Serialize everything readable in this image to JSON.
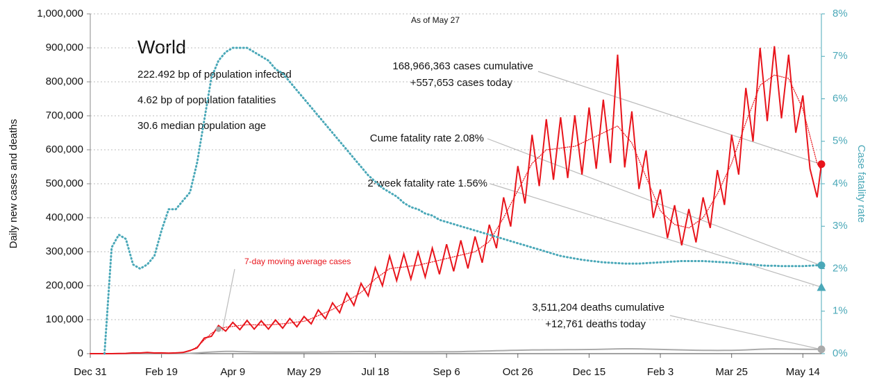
{
  "chart_data": {
    "type": "line",
    "subtitle": "As of May 27",
    "title": "World",
    "info": [
      "222.492 bp of population infected",
      "4.62 bp of population fatalities",
      "30.6 median population age"
    ],
    "ylabel": "Daily new cases and deaths",
    "y2label": "Case fatality rate",
    "xlim": [
      0,
      513
    ],
    "xticks": [
      {
        "value": 0,
        "label": "Dec 31"
      },
      {
        "value": 50,
        "label": "Feb 19"
      },
      {
        "value": 100,
        "label": "Apr 9"
      },
      {
        "value": 150,
        "label": "May 29"
      },
      {
        "value": 200,
        "label": "Jul 18"
      },
      {
        "value": 250,
        "label": "Sep 6"
      },
      {
        "value": 300,
        "label": "Oct 26"
      },
      {
        "value": 350,
        "label": "Dec 15"
      },
      {
        "value": 400,
        "label": "Feb 3"
      },
      {
        "value": 450,
        "label": "Mar 25"
      },
      {
        "value": 500,
        "label": "May 14"
      }
    ],
    "ylim": [
      0,
      1000000
    ],
    "yticks": [
      0,
      {
        "value": 100000,
        "label": "100,000"
      },
      {
        "value": 200000,
        "label": "200,000"
      },
      {
        "value": 300000,
        "label": "300,000"
      },
      {
        "value": 400000,
        "label": "400,000"
      },
      {
        "value": 500000,
        "label": "500,000"
      },
      {
        "value": 600000,
        "label": "600,000"
      },
      {
        "value": 700000,
        "label": "700,000"
      },
      {
        "value": 800000,
        "label": "800,000"
      },
      {
        "value": 900000,
        "label": "900,000"
      },
      {
        "value": 1000000,
        "label": "1,000,000"
      }
    ],
    "y2lim": [
      0,
      8
    ],
    "y2ticks": [
      {
        "value": 0,
        "label": "0%"
      },
      {
        "value": 1,
        "label": "1%"
      },
      {
        "value": 2,
        "label": "2%"
      },
      {
        "value": 3,
        "label": "3%"
      },
      {
        "value": 4,
        "label": "4%"
      },
      {
        "value": 5,
        "label": "5%"
      },
      {
        "value": 6,
        "label": "6%"
      },
      {
        "value": 7,
        "label": "7%"
      },
      {
        "value": 8,
        "label": "8%"
      }
    ],
    "grid": true,
    "x": [
      0,
      5,
      10,
      15,
      20,
      25,
      30,
      35,
      40,
      45,
      50,
      55,
      60,
      65,
      70,
      75,
      80,
      85,
      90,
      95,
      100,
      105,
      110,
      115,
      120,
      125,
      130,
      135,
      140,
      145,
      150,
      155,
      160,
      165,
      170,
      175,
      180,
      185,
      190,
      195,
      200,
      205,
      210,
      215,
      220,
      225,
      230,
      235,
      240,
      245,
      250,
      255,
      260,
      265,
      270,
      275,
      280,
      285,
      290,
      295,
      300,
      305,
      310,
      315,
      320,
      325,
      330,
      335,
      340,
      345,
      350,
      355,
      360,
      365,
      370,
      375,
      380,
      385,
      390,
      395,
      400,
      405,
      410,
      415,
      420,
      425,
      430,
      435,
      440,
      445,
      450,
      455,
      460,
      465,
      470,
      475,
      480,
      485,
      490,
      495,
      500,
      505,
      510,
      513
    ],
    "series": [
      {
        "color": "#aaaaaa",
        "style": "solid",
        "values": [
          0,
          0,
          0,
          0,
          0,
          0,
          50,
          80,
          100,
          100,
          100,
          200,
          300,
          600,
          1000,
          2000,
          3500,
          5000,
          6000,
          6500,
          6500,
          6000,
          5500,
          5200,
          5000,
          4800,
          4600,
          4500,
          4500,
          4500,
          4600,
          4800,
          5000,
          5200,
          5400,
          5600,
          5800,
          6000,
          6200,
          6000,
          5800,
          5700,
          5600,
          5500,
          5400,
          5400,
          5400,
          5400,
          5400,
          5500,
          5600,
          5800,
          6000,
          6500,
          7000,
          7500,
          8000,
          8500,
          9000,
          9500,
          10000,
          10500,
          11000,
          11000,
          11200,
          11300,
          11500,
          11700,
          11900,
          12000,
          12200,
          12500,
          13000,
          13500,
          14000,
          14200,
          14300,
          14000,
          13500,
          13000,
          12500,
          12000,
          11500,
          11000,
          10500,
          10000,
          9800,
          9500,
          9300,
          9500,
          9800,
          10200,
          11000,
          12000,
          13000,
          13500,
          14000,
          13800,
          13500,
          13300,
          13000,
          12800,
          12700,
          12761
        ]
      },
      {
        "color": "#e8141b",
        "style": "solid",
        "values": [
          0,
          0,
          0,
          85,
          575,
          850,
          2300,
          2125,
          3450,
          2125,
          2300,
          1700,
          2300,
          3400,
          9200,
          17000,
          46000,
          51000,
          82800,
          66300,
          92000,
          70550,
          97750,
          72250,
          96600,
          72250,
          98900,
          74800,
          103500,
          79050,
          109250,
          87550,
          128800,
          102850,
          149500,
          120700,
          178250,
          141950,
          207000,
          170000,
          253000,
          199750,
          287500,
          215050,
          293250,
          219300,
          299000,
          225250,
          310500,
          233750,
          322000,
          242250,
          333500,
          250750,
          345000,
          267750,
          379500,
          310250,
          460000,
          374000,
          552000,
          442000,
          644000,
          493000,
          690000,
          511700,
          695750,
          516800,
          701500,
          527000,
          724500,
          544000,
          747500,
          561000,
          880000,
          548250,
          713000,
          484500,
          598000,
          399500,
          483000,
          340000,
          437000,
          318750,
          425500,
          327250,
          460000,
          369750,
          540500,
          437750,
          644000,
          527000,
          782000,
          624750,
          900000,
          684250,
          905000,
          692750,
          880000,
          650250,
          760000,
          544000,
          460000,
          557653
        ]
      },
      {
        "name": "7-day moving average cases",
        "color": "#e8141b",
        "style": "dotted",
        "values": [
          0,
          0,
          0,
          100,
          500,
          1000,
          2000,
          2500,
          3000,
          2500,
          2000,
          2000,
          2000,
          4000,
          8000,
          20000,
          40000,
          60000,
          72000,
          78000,
          80000,
          83000,
          85000,
          85000,
          84000,
          85000,
          86000,
          88000,
          90000,
          93000,
          95000,
          103000,
          112000,
          121000,
          130000,
          142000,
          155000,
          167000,
          180000,
          200000,
          220000,
          235000,
          250000,
          253000,
          255000,
          258000,
          260000,
          265000,
          270000,
          275000,
          280000,
          285000,
          290000,
          295000,
          300000,
          315000,
          330000,
          365000,
          400000,
          440000,
          480000,
          520000,
          560000,
          580000,
          600000,
          602000,
          605000,
          608000,
          610000,
          620000,
          630000,
          640000,
          650000,
          660000,
          670000,
          645000,
          620000,
          570000,
          520000,
          470000,
          420000,
          400000,
          380000,
          375000,
          370000,
          385000,
          400000,
          435000,
          470000,
          515000,
          560000,
          620000,
          680000,
          735000,
          790000,
          805000,
          820000,
          815000,
          810000,
          765000,
          720000,
          640000,
          560000,
          540000
        ]
      },
      {
        "color": "#4aa8b8",
        "style": "dotted",
        "axis": "y2",
        "values": [
          null,
          null,
          0,
          2.5,
          2.8,
          2.7,
          2.1,
          2.0,
          2.1,
          2.3,
          2.9,
          3.4,
          3.4,
          3.6,
          3.8,
          4.5,
          5.5,
          6.5,
          6.9,
          7.1,
          7.2,
          7.2,
          7.2,
          7.1,
          7.0,
          6.9,
          6.7,
          6.6,
          6.4,
          6.2,
          6.0,
          5.8,
          5.6,
          5.4,
          5.2,
          5.0,
          4.8,
          4.6,
          4.4,
          4.2,
          4.05,
          3.9,
          3.8,
          3.7,
          3.55,
          3.45,
          3.4,
          3.3,
          3.25,
          3.15,
          3.1,
          3.05,
          3.0,
          2.95,
          2.9,
          2.85,
          2.8,
          2.75,
          2.7,
          2.65,
          2.6,
          2.55,
          2.5,
          2.45,
          2.4,
          2.35,
          2.3,
          2.27,
          2.24,
          2.21,
          2.19,
          2.17,
          2.15,
          2.14,
          2.13,
          2.12,
          2.12,
          2.12,
          2.13,
          2.14,
          2.15,
          2.16,
          2.17,
          2.18,
          2.18,
          2.18,
          2.18,
          2.17,
          2.16,
          2.15,
          2.14,
          2.12,
          2.11,
          2.1,
          2.08,
          2.07,
          2.07,
          2.06,
          2.06,
          2.06,
          2.06,
          2.07,
          2.08,
          2.08
        ]
      }
    ],
    "two_week_fatality_rate": 1.56,
    "annotations": [
      "168,966,363 cases cumulative",
      "+557,653 cases today",
      "Cume fatality rate 2.08%",
      "2-week fatality rate 1.56%",
      "3,511,204 deaths cumulative",
      "+12,761 deaths today"
    ]
  }
}
